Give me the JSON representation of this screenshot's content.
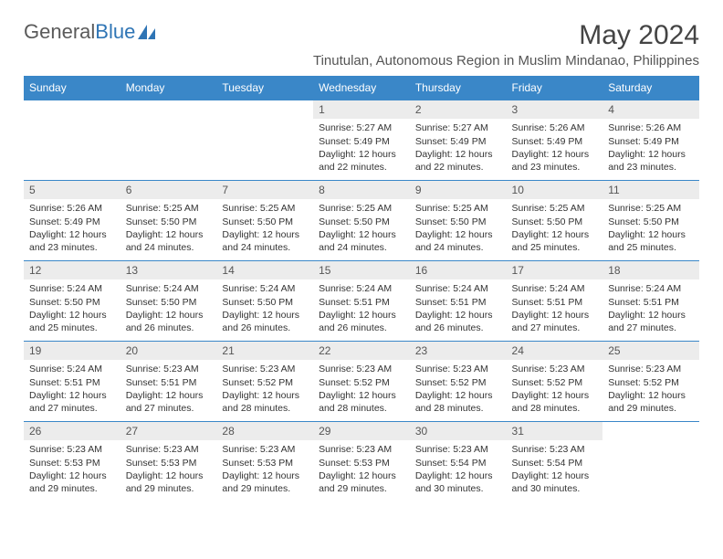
{
  "logo": {
    "text1": "General",
    "text2": "Blue"
  },
  "title": "May 2024",
  "subtitle": "Tinutulan, Autonomous Region in Muslim Mindanao, Philippines",
  "colors": {
    "header_bg": "#3a87c8",
    "header_text": "#ffffff",
    "daynum_bg": "#ececec",
    "border": "#3a87c8",
    "logo_gray": "#5a5a5a",
    "logo_blue": "#2f75b5"
  },
  "weekdays": [
    "Sunday",
    "Monday",
    "Tuesday",
    "Wednesday",
    "Thursday",
    "Friday",
    "Saturday"
  ],
  "weeks": [
    [
      {
        "day": "",
        "sunrise": "",
        "sunset": "",
        "daylight": ""
      },
      {
        "day": "",
        "sunrise": "",
        "sunset": "",
        "daylight": ""
      },
      {
        "day": "",
        "sunrise": "",
        "sunset": "",
        "daylight": ""
      },
      {
        "day": "1",
        "sunrise": "Sunrise: 5:27 AM",
        "sunset": "Sunset: 5:49 PM",
        "daylight": "Daylight: 12 hours and 22 minutes."
      },
      {
        "day": "2",
        "sunrise": "Sunrise: 5:27 AM",
        "sunset": "Sunset: 5:49 PM",
        "daylight": "Daylight: 12 hours and 22 minutes."
      },
      {
        "day": "3",
        "sunrise": "Sunrise: 5:26 AM",
        "sunset": "Sunset: 5:49 PM",
        "daylight": "Daylight: 12 hours and 23 minutes."
      },
      {
        "day": "4",
        "sunrise": "Sunrise: 5:26 AM",
        "sunset": "Sunset: 5:49 PM",
        "daylight": "Daylight: 12 hours and 23 minutes."
      }
    ],
    [
      {
        "day": "5",
        "sunrise": "Sunrise: 5:26 AM",
        "sunset": "Sunset: 5:49 PM",
        "daylight": "Daylight: 12 hours and 23 minutes."
      },
      {
        "day": "6",
        "sunrise": "Sunrise: 5:25 AM",
        "sunset": "Sunset: 5:50 PM",
        "daylight": "Daylight: 12 hours and 24 minutes."
      },
      {
        "day": "7",
        "sunrise": "Sunrise: 5:25 AM",
        "sunset": "Sunset: 5:50 PM",
        "daylight": "Daylight: 12 hours and 24 minutes."
      },
      {
        "day": "8",
        "sunrise": "Sunrise: 5:25 AM",
        "sunset": "Sunset: 5:50 PM",
        "daylight": "Daylight: 12 hours and 24 minutes."
      },
      {
        "day": "9",
        "sunrise": "Sunrise: 5:25 AM",
        "sunset": "Sunset: 5:50 PM",
        "daylight": "Daylight: 12 hours and 24 minutes."
      },
      {
        "day": "10",
        "sunrise": "Sunrise: 5:25 AM",
        "sunset": "Sunset: 5:50 PM",
        "daylight": "Daylight: 12 hours and 25 minutes."
      },
      {
        "day": "11",
        "sunrise": "Sunrise: 5:25 AM",
        "sunset": "Sunset: 5:50 PM",
        "daylight": "Daylight: 12 hours and 25 minutes."
      }
    ],
    [
      {
        "day": "12",
        "sunrise": "Sunrise: 5:24 AM",
        "sunset": "Sunset: 5:50 PM",
        "daylight": "Daylight: 12 hours and 25 minutes."
      },
      {
        "day": "13",
        "sunrise": "Sunrise: 5:24 AM",
        "sunset": "Sunset: 5:50 PM",
        "daylight": "Daylight: 12 hours and 26 minutes."
      },
      {
        "day": "14",
        "sunrise": "Sunrise: 5:24 AM",
        "sunset": "Sunset: 5:50 PM",
        "daylight": "Daylight: 12 hours and 26 minutes."
      },
      {
        "day": "15",
        "sunrise": "Sunrise: 5:24 AM",
        "sunset": "Sunset: 5:51 PM",
        "daylight": "Daylight: 12 hours and 26 minutes."
      },
      {
        "day": "16",
        "sunrise": "Sunrise: 5:24 AM",
        "sunset": "Sunset: 5:51 PM",
        "daylight": "Daylight: 12 hours and 26 minutes."
      },
      {
        "day": "17",
        "sunrise": "Sunrise: 5:24 AM",
        "sunset": "Sunset: 5:51 PM",
        "daylight": "Daylight: 12 hours and 27 minutes."
      },
      {
        "day": "18",
        "sunrise": "Sunrise: 5:24 AM",
        "sunset": "Sunset: 5:51 PM",
        "daylight": "Daylight: 12 hours and 27 minutes."
      }
    ],
    [
      {
        "day": "19",
        "sunrise": "Sunrise: 5:24 AM",
        "sunset": "Sunset: 5:51 PM",
        "daylight": "Daylight: 12 hours and 27 minutes."
      },
      {
        "day": "20",
        "sunrise": "Sunrise: 5:23 AM",
        "sunset": "Sunset: 5:51 PM",
        "daylight": "Daylight: 12 hours and 27 minutes."
      },
      {
        "day": "21",
        "sunrise": "Sunrise: 5:23 AM",
        "sunset": "Sunset: 5:52 PM",
        "daylight": "Daylight: 12 hours and 28 minutes."
      },
      {
        "day": "22",
        "sunrise": "Sunrise: 5:23 AM",
        "sunset": "Sunset: 5:52 PM",
        "daylight": "Daylight: 12 hours and 28 minutes."
      },
      {
        "day": "23",
        "sunrise": "Sunrise: 5:23 AM",
        "sunset": "Sunset: 5:52 PM",
        "daylight": "Daylight: 12 hours and 28 minutes."
      },
      {
        "day": "24",
        "sunrise": "Sunrise: 5:23 AM",
        "sunset": "Sunset: 5:52 PM",
        "daylight": "Daylight: 12 hours and 28 minutes."
      },
      {
        "day": "25",
        "sunrise": "Sunrise: 5:23 AM",
        "sunset": "Sunset: 5:52 PM",
        "daylight": "Daylight: 12 hours and 29 minutes."
      }
    ],
    [
      {
        "day": "26",
        "sunrise": "Sunrise: 5:23 AM",
        "sunset": "Sunset: 5:53 PM",
        "daylight": "Daylight: 12 hours and 29 minutes."
      },
      {
        "day": "27",
        "sunrise": "Sunrise: 5:23 AM",
        "sunset": "Sunset: 5:53 PM",
        "daylight": "Daylight: 12 hours and 29 minutes."
      },
      {
        "day": "28",
        "sunrise": "Sunrise: 5:23 AM",
        "sunset": "Sunset: 5:53 PM",
        "daylight": "Daylight: 12 hours and 29 minutes."
      },
      {
        "day": "29",
        "sunrise": "Sunrise: 5:23 AM",
        "sunset": "Sunset: 5:53 PM",
        "daylight": "Daylight: 12 hours and 29 minutes."
      },
      {
        "day": "30",
        "sunrise": "Sunrise: 5:23 AM",
        "sunset": "Sunset: 5:54 PM",
        "daylight": "Daylight: 12 hours and 30 minutes."
      },
      {
        "day": "31",
        "sunrise": "Sunrise: 5:23 AM",
        "sunset": "Sunset: 5:54 PM",
        "daylight": "Daylight: 12 hours and 30 minutes."
      },
      {
        "day": "",
        "sunrise": "",
        "sunset": "",
        "daylight": ""
      }
    ]
  ]
}
